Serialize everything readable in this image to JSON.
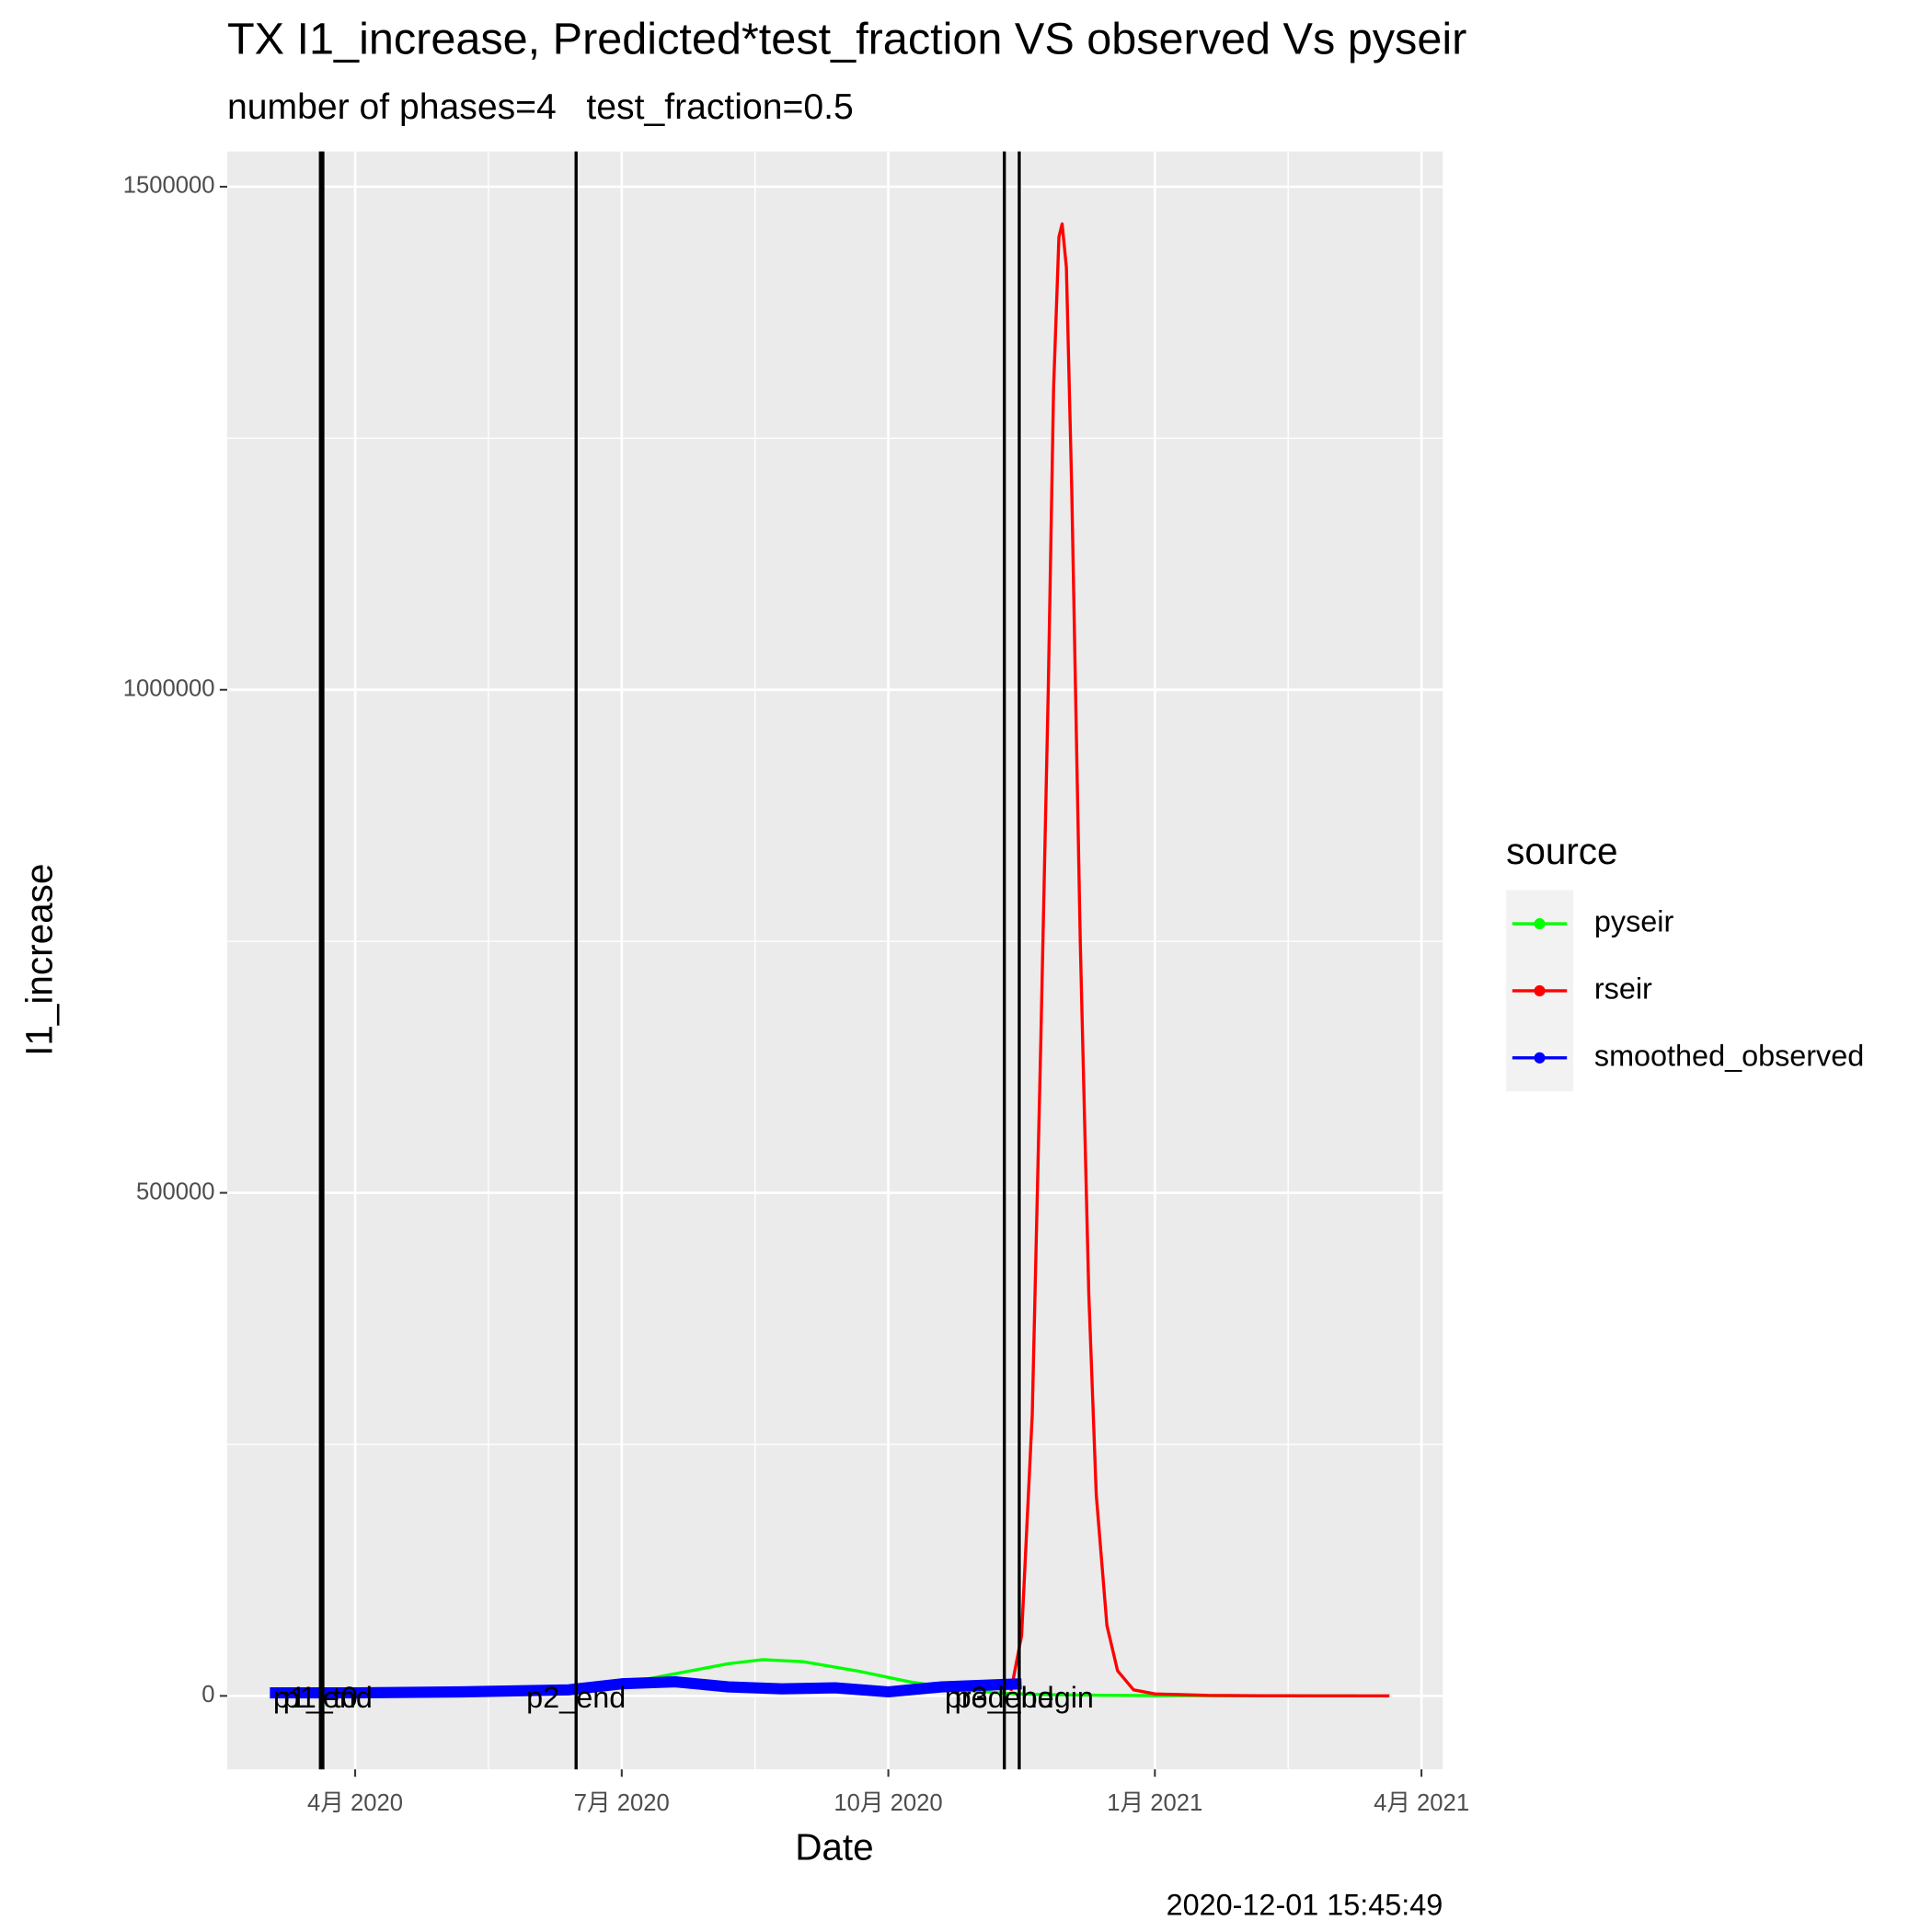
{
  "chart_data": {
    "type": "line",
    "title": "TX I1_increase, Predicted*test_fraction VS observed Vs pyseir",
    "subtitle": "number of phases=4   test_fraction=0.5",
    "caption": "2020-12-01 15:45:49",
    "x_label": "Date",
    "y_label": "I1_increase",
    "legend_title": "source",
    "legend_position": "right",
    "grid": true,
    "xlim": [
      2020.13,
      2021.27
    ],
    "xticks": [
      {
        "value": 2020.25,
        "label": "4月 2020"
      },
      {
        "value": 2020.5,
        "label": "7月 2020"
      },
      {
        "value": 2020.75,
        "label": "10月 2020"
      },
      {
        "value": 2021.0,
        "label": "1月 2021"
      },
      {
        "value": 2021.25,
        "label": "4月 2021"
      }
    ],
    "ylim": [
      -73000,
      1535000
    ],
    "yticks": [
      0,
      500000,
      1000000,
      1500000
    ],
    "vlines": [
      {
        "x": 2020.2174,
        "label": "p1_t0"
      },
      {
        "x": 2020.2197,
        "label": "p1_end"
      },
      {
        "x": 2020.4572,
        "label": "p2_end"
      },
      {
        "x": 2020.8588,
        "label": "p3_end"
      },
      {
        "x": 2020.8728,
        "label": "pred_begin"
      }
    ],
    "series": [
      {
        "name": "pyseir",
        "color": "#00ff00",
        "x": [
          2020.18,
          2020.3,
          2020.4,
          2020.45,
          2020.5,
          2020.55,
          2020.6,
          2020.632,
          2020.67,
          2020.72,
          2020.77,
          2020.82,
          2020.86,
          2020.9,
          2020.95,
          2021.0,
          2021.1,
          2021.188
        ],
        "values": [
          1000,
          1500,
          2500,
          5000,
          12000,
          22000,
          32000,
          36000,
          34000,
          25000,
          14000,
          6000,
          2500,
          1200,
          600,
          300,
          100,
          50
        ]
      },
      {
        "name": "rseir",
        "color": "#ff0000",
        "x": [
          2020.865,
          2020.875,
          2020.885,
          2020.893,
          2020.9,
          2020.905,
          2020.91,
          2020.913,
          2020.917,
          2020.922,
          2020.93,
          2020.938,
          2020.945,
          2020.955,
          2020.965,
          2020.98,
          2021.0,
          2021.05,
          2021.1,
          2021.15,
          2021.22
        ],
        "values": [
          5000,
          60000,
          280000,
          650000,
          1000000,
          1300000,
          1450000,
          1463000,
          1420000,
          1200000,
          750000,
          400000,
          200000,
          70000,
          25000,
          6000,
          2000,
          500,
          200,
          100,
          0
        ]
      },
      {
        "name": "smoothed_observed",
        "color": "#0000ff",
        "x": [
          2020.17,
          2020.25,
          2020.35,
          2020.45,
          2020.5,
          2020.55,
          2020.6,
          2020.65,
          2020.7,
          2020.75,
          2020.8,
          2020.85,
          2020.875
        ],
        "values": [
          3000,
          3000,
          4000,
          6000,
          12000,
          14000,
          9000,
          7000,
          8000,
          4000,
          9000,
          11000,
          12000
        ]
      }
    ]
  }
}
